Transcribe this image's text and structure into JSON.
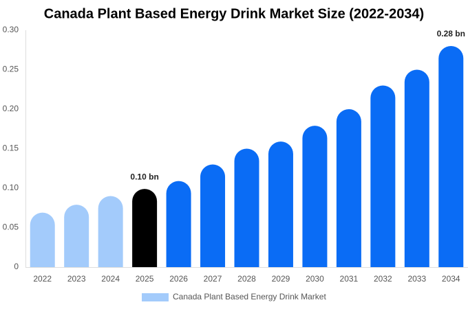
{
  "chart_data": {
    "type": "bar",
    "title": "Canada Plant Based Energy Drink Market Size (2022-2034)",
    "categories": [
      "2022",
      "2023",
      "2024",
      "2025",
      "2026",
      "2027",
      "2028",
      "2029",
      "2030",
      "2031",
      "2032",
      "2033",
      "2034"
    ],
    "series": [
      {
        "name": "Canada Plant Based Energy Drink Market",
        "color": "#a3cbfb",
        "values": [
          0.069,
          0.079,
          0.09,
          0.099,
          0.109,
          0.13,
          0.15,
          0.159,
          0.179,
          0.2,
          0.23,
          0.25,
          0.28
        ],
        "value_labels": [
          null,
          null,
          null,
          "0.10 bn",
          null,
          null,
          null,
          null,
          null,
          null,
          null,
          null,
          "0.28 bn"
        ],
        "bar_colors": [
          "#a3cbfb",
          "#a3cbfb",
          "#a3cbfb",
          "#000000",
          "#0a6cf5",
          "#0a6cf5",
          "#0a6cf5",
          "#0a6cf5",
          "#0a6cf5",
          "#0a6cf5",
          "#0a6cf5",
          "#0a6cf5",
          "#0a6cf5"
        ]
      }
    ],
    "ylim": [
      0,
      0.3
    ],
    "yticks": [
      0,
      0.05,
      {
        "value": 0.1,
        "label": "0.10"
      },
      0.15,
      {
        "value": 0.2,
        "label": "0.20"
      },
      0.25,
      {
        "value": 0.3,
        "label": "0.30"
      }
    ],
    "grid": false,
    "legend": "bottom"
  }
}
